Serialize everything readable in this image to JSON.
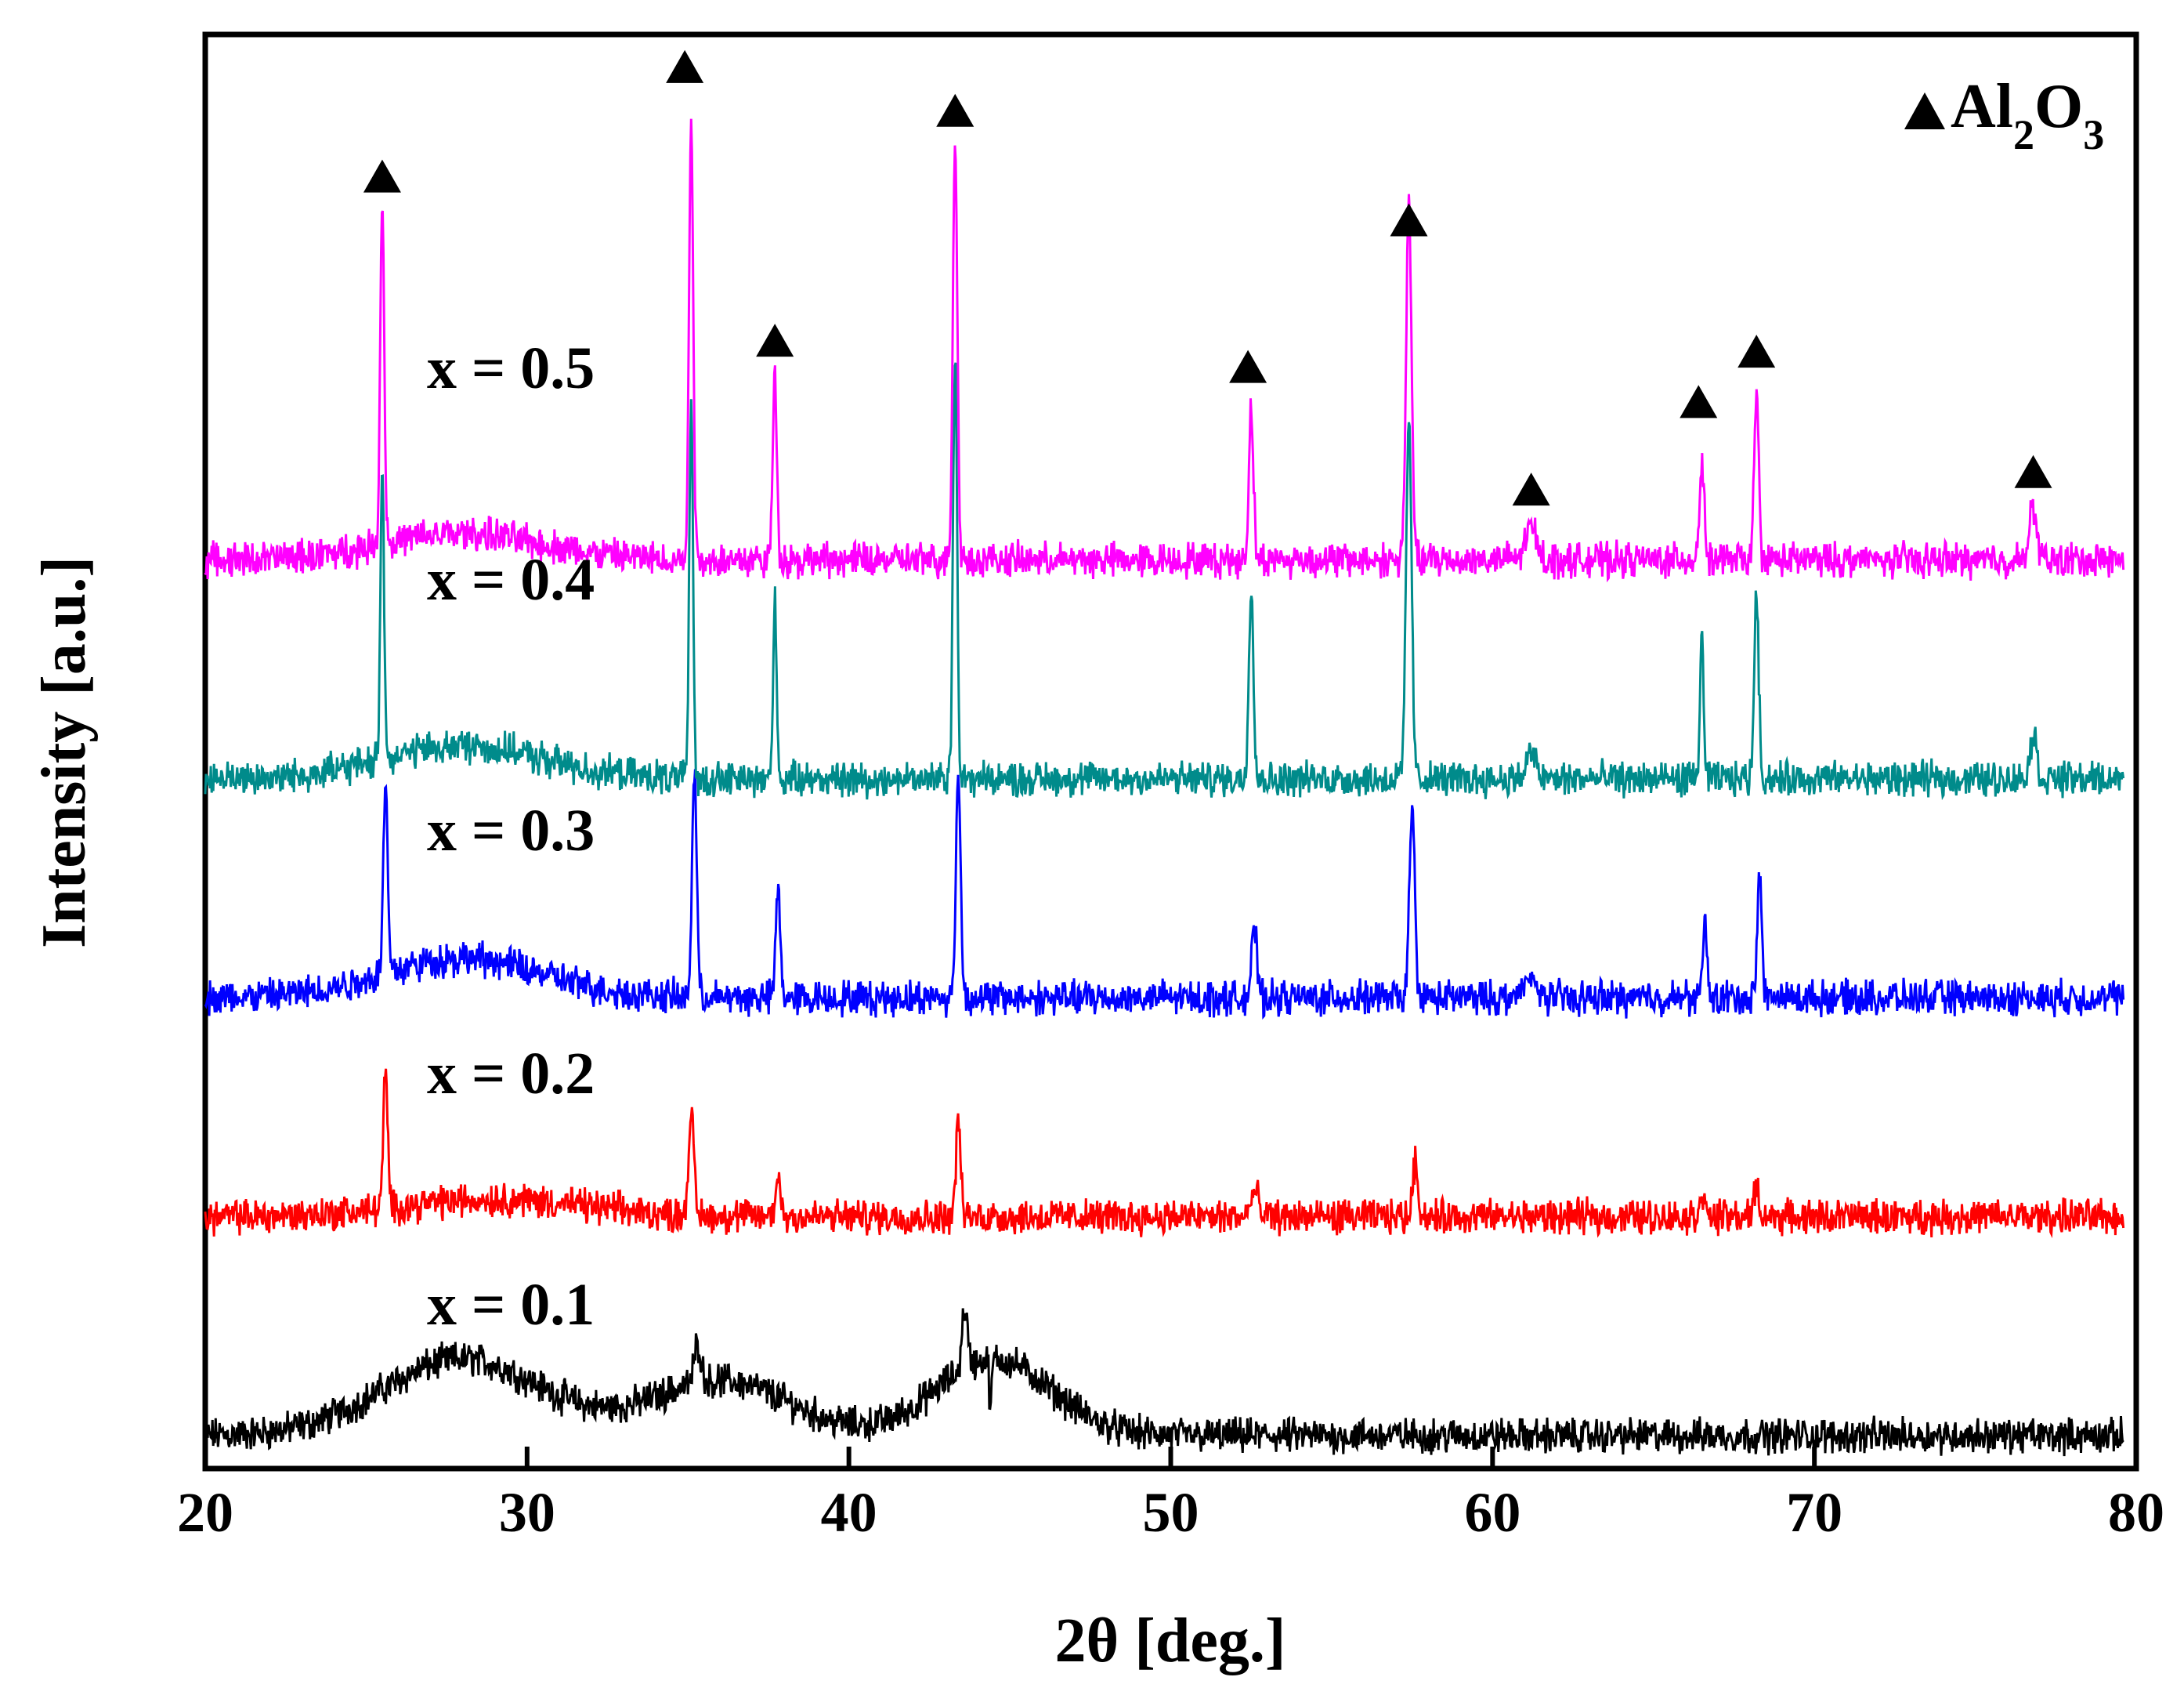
{
  "chart_data": {
    "type": "line",
    "title": "",
    "xlabel": "2θ [deg.]",
    "ylabel": "Intensity [a.u.]",
    "xlim": [
      20,
      80
    ],
    "xticks": [
      20,
      30,
      40,
      50,
      60,
      70,
      80
    ],
    "xtick_labels": [
      "20",
      "30",
      "40",
      "50",
      "60",
      "70",
      "80"
    ],
    "y_ticks_shown": false,
    "legend": {
      "position": "top-right",
      "marker": "filled-triangle",
      "label_main": "Al",
      "label_sub1": "2",
      "label_mid": "O",
      "label_sub2": "3"
    },
    "marker_color": "#000000",
    "series": [
      {
        "name": "x = 0.1",
        "color": "#000000",
        "baseline": 0.0,
        "noise": 0.12,
        "humps": [
          [
            28,
            0.35,
            3.5
          ],
          [
            36,
            0.25,
            3
          ],
          [
            44.5,
            0.35,
            2.5
          ]
        ],
        "peaks": [
          [
            35.3,
            0.18,
            0.15
          ],
          [
            43.6,
            0.28,
            0.12
          ],
          [
            44.4,
            -0.25,
            0.05
          ]
        ]
      },
      {
        "name": "x = 0.2",
        "color": "#ff0000",
        "baseline": 1.0,
        "noise": 0.12,
        "humps": [
          [
            29,
            0.08,
            4
          ]
        ],
        "peaks": [
          [
            25.6,
            0.6,
            0.1
          ],
          [
            35.1,
            0.45,
            0.12
          ],
          [
            37.8,
            0.2,
            0.1
          ],
          [
            43.4,
            0.45,
            0.1
          ],
          [
            52.6,
            0.12,
            0.15
          ],
          [
            57.6,
            0.25,
            0.12
          ],
          [
            66.5,
            0.12,
            0.1
          ],
          [
            68.2,
            0.15,
            0.1
          ]
        ]
      },
      {
        "name": "x = 0.3",
        "color": "#0000ff",
        "baseline": 2.0,
        "noise": 0.12,
        "humps": [
          [
            28,
            0.18,
            3.5
          ]
        ],
        "peaks": [
          [
            25.6,
            0.85,
            0.1
          ],
          [
            35.2,
            1.05,
            0.1
          ],
          [
            37.8,
            0.5,
            0.1
          ],
          [
            43.4,
            1.05,
            0.1
          ],
          [
            52.6,
            0.3,
            0.12
          ],
          [
            57.5,
            0.85,
            0.12
          ],
          [
            66.6,
            0.4,
            0.08
          ],
          [
            68.3,
            0.55,
            0.1
          ],
          [
            61.2,
            0.08,
            0.3
          ]
        ]
      },
      {
        "name": "x = 0.4",
        "color": "#008b8b",
        "baseline": 3.0,
        "noise": 0.12,
        "humps": [
          [
            28,
            0.15,
            3.5
          ]
        ],
        "peaks": [
          [
            25.5,
            1.35,
            0.08
          ],
          [
            35.1,
            1.75,
            0.08
          ],
          [
            37.7,
            0.8,
            0.08
          ],
          [
            43.3,
            1.95,
            0.09
          ],
          [
            52.5,
            0.9,
            0.1
          ],
          [
            57.4,
            1.65,
            0.12
          ],
          [
            61.2,
            0.12,
            0.2
          ],
          [
            66.5,
            0.65,
            0.08
          ],
          [
            68.2,
            0.85,
            0.1
          ],
          [
            76.8,
            0.2,
            0.15
          ]
        ]
      },
      {
        "name": "x = 0.5",
        "color": "#ff00ff",
        "baseline": 4.0,
        "noise": 0.12,
        "humps": [
          [
            28,
            0.12,
            3.5
          ]
        ],
        "peaks": [
          [
            25.5,
            1.55,
            0.09
          ],
          [
            35.1,
            2.05,
            0.09
          ],
          [
            37.7,
            0.85,
            0.09
          ],
          [
            43.3,
            1.9,
            0.1
          ],
          [
            52.5,
            0.7,
            0.1
          ],
          [
            57.4,
            1.6,
            0.12
          ],
          [
            61.2,
            0.15,
            0.25
          ],
          [
            66.5,
            0.45,
            0.1
          ],
          [
            68.2,
            0.75,
            0.1
          ],
          [
            76.8,
            0.25,
            0.15
          ]
        ]
      }
    ],
    "triangle_markers": [
      {
        "x": 25.5,
        "y": 5.75
      },
      {
        "x": 34.9,
        "y": 6.25
      },
      {
        "x": 37.7,
        "y": 5.0
      },
      {
        "x": 43.3,
        "y": 6.05
      },
      {
        "x": 52.4,
        "y": 4.88
      },
      {
        "x": 57.4,
        "y": 5.55
      },
      {
        "x": 61.2,
        "y": 4.32
      },
      {
        "x": 66.4,
        "y": 4.72
      },
      {
        "x": 68.2,
        "y": 4.95
      },
      {
        "x": 76.8,
        "y": 4.4
      }
    ],
    "ylim": [
      -0.15,
      6.4
    ]
  }
}
